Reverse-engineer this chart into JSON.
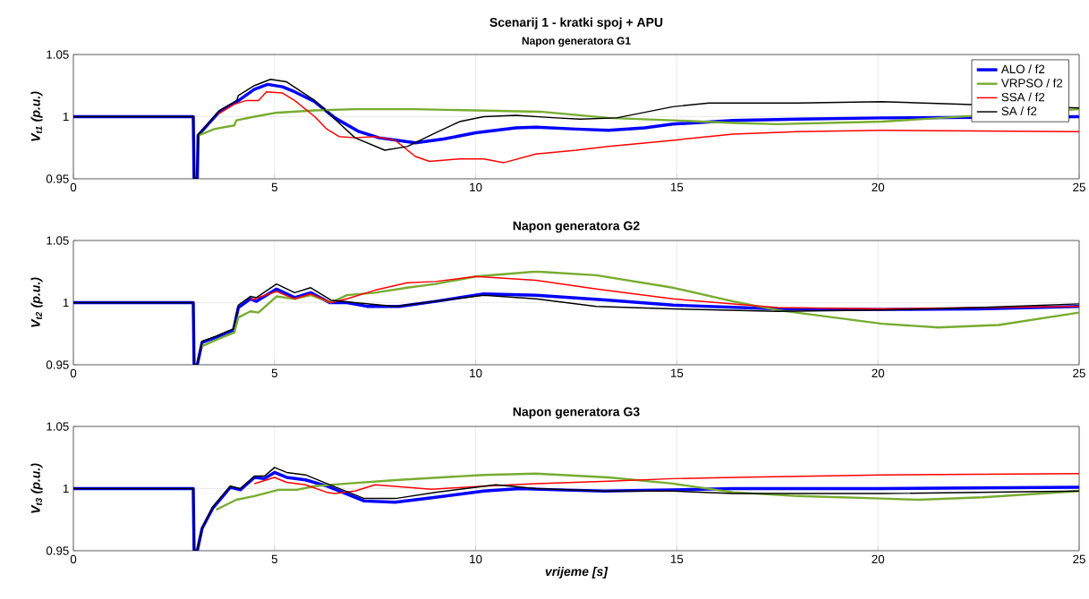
{
  "chart_data": [
    {
      "type": "line",
      "title": "Scenarij 1 - kratki spoj + APU",
      "subtitle": "Napon generatora G1",
      "ylabel": "V$_{t1}$ (p.u.)",
      "xlim": [
        0,
        25
      ],
      "ylim": [
        0.95,
        1.05
      ],
      "xticks": [
        0,
        5,
        10,
        15,
        20,
        25
      ],
      "yticks": [
        0.95,
        1,
        1.05
      ],
      "grid": true,
      "legend": "top right",
      "series": [
        {
          "name": "ALO / f2",
          "color": "#0000ff",
          "x": [
            0,
            2.98,
            3,
            3.08,
            3.1,
            3.63,
            4.06,
            4.5,
            4.83,
            5.2,
            5.5,
            6.0,
            6.5,
            7.1,
            7.6,
            8.5,
            9.2,
            10,
            11,
            11.5,
            12.5,
            13.3,
            14.2,
            14.9,
            16.4,
            18,
            20.1,
            25
          ],
          "values": [
            1,
            1,
            0.95,
            0.95,
            0.985,
            1.004,
            1.012,
            1.022,
            1.026,
            1.024,
            1.02,
            1.012,
            0.999,
            0.988,
            0.983,
            0.979,
            0.982,
            0.987,
            0.991,
            0.9915,
            0.99,
            0.989,
            0.991,
            0.994,
            0.997,
            0.998,
            0.999,
            1.0
          ]
        },
        {
          "name": "VRPSO / f2",
          "color": "#77ac30",
          "x": [
            3.12,
            3.5,
            4.0,
            4.05,
            4.5,
            5,
            6,
            7,
            8.5,
            10,
            11.6,
            13.3,
            14.9,
            16.4,
            17.5,
            20.1,
            25
          ],
          "values": [
            0.985,
            0.99,
            0.993,
            0.997,
            1.0,
            1.003,
            1.005,
            1.006,
            1.006,
            1.005,
            1.004,
            0.999,
            0.997,
            0.995,
            0.994,
            0.996,
            1.006
          ]
        },
        {
          "name": "SSA / f2",
          "color": "#ff0000",
          "x": [
            3.6,
            4.0,
            4.3,
            4.6,
            4.8,
            5.2,
            5.5,
            6,
            6.3,
            6.6,
            7,
            7.5,
            8,
            8.5,
            8.85,
            9.6,
            10.2,
            10.7,
            11.5,
            12.5,
            13.3,
            14.9,
            16.4,
            18,
            20.1,
            25
          ],
          "values": [
            1.002,
            1.01,
            1.013,
            1.013,
            1.02,
            1.019,
            1.013,
            1.0,
            0.99,
            0.984,
            0.983,
            0.984,
            0.981,
            0.968,
            0.964,
            0.966,
            0.966,
            0.963,
            0.97,
            0.973,
            0.976,
            0.981,
            0.986,
            0.988,
            0.989,
            0.988
          ]
        },
        {
          "name": "SA / f2",
          "color": "#000000",
          "x": [
            0,
            2.98,
            3,
            3.08,
            3.1,
            3.63,
            4.06,
            4.1,
            4.5,
            4.9,
            5.3,
            6.0,
            6.5,
            7.0,
            7.74,
            8.3,
            9.0,
            9.6,
            10.2,
            11,
            12,
            12.6,
            13.5,
            14.9,
            15.8,
            18,
            20.1,
            25
          ],
          "values": [
            1,
            1,
            0.95,
            0.95,
            0.985,
            1.005,
            1.013,
            1.017,
            1.025,
            1.03,
            1.028,
            1.013,
            0.998,
            0.983,
            0.973,
            0.976,
            0.987,
            0.996,
            1.0,
            1.001,
            0.999,
            0.998,
            0.999,
            1.008,
            1.011,
            1.011,
            1.012,
            1.007
          ]
        }
      ]
    },
    {
      "type": "line",
      "title": "Napon generatora G2",
      "ylabel": "V$_{t2}$ (p.u.)",
      "xlim": [
        0,
        25
      ],
      "ylim": [
        0.95,
        1.05
      ],
      "xticks": [
        0,
        5,
        10,
        15,
        20,
        25
      ],
      "yticks": [
        0.95,
        1,
        1.05
      ],
      "grid": true,
      "series": [
        {
          "color": "#0000ff",
          "x": [
            0,
            2.98,
            3,
            3.08,
            3.2,
            3.55,
            3.98,
            4.1,
            4.4,
            4.55,
            5.05,
            5.5,
            5.9,
            6.37,
            6.8,
            7.3,
            8.1,
            9,
            10.2,
            11.5,
            13.3,
            14.9,
            17.5,
            20.1,
            22.5,
            25
          ],
          "values": [
            1,
            1,
            0.95,
            0.95,
            0.968,
            0.972,
            0.978,
            0.996,
            1.003,
            1.001,
            1.011,
            1.004,
            1.008,
            1.0,
            1.0,
            0.997,
            0.997,
            1.001,
            1.007,
            1.006,
            1.002,
            0.998,
            0.995,
            0.9945,
            0.995,
            0.997
          ]
        },
        {
          "color": "#77ac30",
          "x": [
            3.2,
            3.55,
            4,
            4.1,
            4.4,
            4.6,
            5.05,
            5.5,
            5.9,
            6.4,
            6.8,
            7.5,
            8.3,
            9,
            10,
            11.5,
            13,
            14.9,
            16.4,
            17.5,
            20.1,
            21.5,
            23,
            25
          ],
          "values": [
            0.965,
            0.97,
            0.976,
            0.988,
            0.993,
            0.992,
            1.005,
            1.003,
            1.006,
            1.0,
            1.006,
            1.008,
            1.012,
            1.015,
            1.021,
            1.025,
            1.022,
            1.012,
            1.001,
            0.994,
            0.983,
            0.98,
            0.982,
            0.992
          ]
        },
        {
          "color": "#ff0000",
          "x": [
            4.4,
            5.05,
            5.5,
            5.9,
            6.4,
            6.8,
            7.5,
            8.3,
            9,
            10,
            11.5,
            13,
            14.9,
            17.5,
            20.1,
            25
          ],
          "values": [
            1.002,
            1.009,
            1.003,
            1.007,
            1.0,
            1.003,
            1.01,
            1.016,
            1.017,
            1.021,
            1.018,
            1.011,
            1.003,
            0.996,
            0.995,
            0.997
          ]
        },
        {
          "color": "#000000",
          "x": [
            0,
            2.98,
            3,
            3.08,
            3.2,
            3.55,
            3.98,
            4.1,
            4.4,
            4.55,
            5.05,
            5.5,
            5.9,
            6.4,
            7,
            8,
            10.2,
            11.5,
            13,
            14.9,
            17.5,
            20.1,
            22.5,
            25
          ],
          "values": [
            1,
            1,
            0.95,
            0.95,
            0.969,
            0.973,
            0.979,
            0.998,
            1.005,
            1.004,
            1.015,
            1.008,
            1.012,
            1.002,
            1.0,
            0.997,
            1.006,
            1.003,
            0.997,
            0.995,
            0.993,
            0.994,
            0.996,
            0.999
          ]
        }
      ]
    },
    {
      "type": "line",
      "title": "Napon generatora G3",
      "xlabel": "vrijeme [s]",
      "ylabel": "V$_{t3}$ (p.u.)",
      "xlim": [
        0,
        25
      ],
      "ylim": [
        0.95,
        1.05
      ],
      "xticks": [
        0,
        5,
        10,
        15,
        20,
        25
      ],
      "yticks": [
        0.95,
        1,
        1.05
      ],
      "grid": true,
      "series": [
        {
          "color": "#0000ff",
          "x": [
            0,
            2.98,
            3,
            3.08,
            3.2,
            3.46,
            3.9,
            4.15,
            4.5,
            4.75,
            5.0,
            5.3,
            5.77,
            6.3,
            7.23,
            8,
            9,
            10.2,
            11.1,
            12,
            13.2,
            14.9,
            16.4,
            20,
            25
          ],
          "values": [
            1,
            1,
            0.95,
            0.95,
            0.968,
            0.984,
            1.001,
            0.999,
            1.009,
            1.008,
            1.013,
            1.009,
            1.007,
            1.002,
            0.99,
            0.989,
            0.993,
            0.998,
            1.0,
            0.999,
            0.998,
            0.999,
            1.0,
            1.0,
            1.001
          ]
        },
        {
          "color": "#77ac30",
          "x": [
            3.55,
            4.05,
            4.5,
            5.1,
            5.55,
            6,
            6.8,
            8.1,
            10.2,
            11.5,
            13.3,
            14.9,
            16.4,
            18,
            20.1,
            21,
            22.6,
            25
          ],
          "values": [
            0.983,
            0.991,
            0.994,
            0.999,
            0.999,
            1.002,
            1.004,
            1.007,
            1.011,
            1.012,
            1.009,
            1.004,
            0.997,
            0.994,
            0.992,
            0.991,
            0.993,
            0.998
          ]
        },
        {
          "color": "#ff0000",
          "x": [
            4.5,
            5,
            5.3,
            5.77,
            6.3,
            6.5,
            7,
            7.5,
            8.9,
            10.2,
            11.5,
            13.3,
            14.9,
            16.4,
            20.1,
            25
          ],
          "values": [
            1.004,
            1.009,
            1.005,
            1.003,
            0.997,
            0.996,
            0.998,
            1.003,
            0.9995,
            1.002,
            1.004,
            1.006,
            1.008,
            1.009,
            1.011,
            1.012
          ]
        },
        {
          "color": "#000000",
          "x": [
            0,
            2.98,
            3,
            3.08,
            3.2,
            3.46,
            3.9,
            4.15,
            4.5,
            4.75,
            5.0,
            5.3,
            5.77,
            6.3,
            7.23,
            8,
            9,
            10.5,
            11.5,
            13.2,
            14.9,
            16.4,
            20.1,
            25
          ],
          "values": [
            1,
            1,
            0.95,
            0.95,
            0.968,
            0.985,
            1.002,
            1.0,
            1.01,
            1.01,
            1.017,
            1.013,
            1.011,
            1.004,
            0.992,
            0.992,
            0.997,
            1.003,
            1.0,
            0.998,
            0.998,
            0.996,
            0.996,
            0.998
          ]
        }
      ]
    }
  ]
}
